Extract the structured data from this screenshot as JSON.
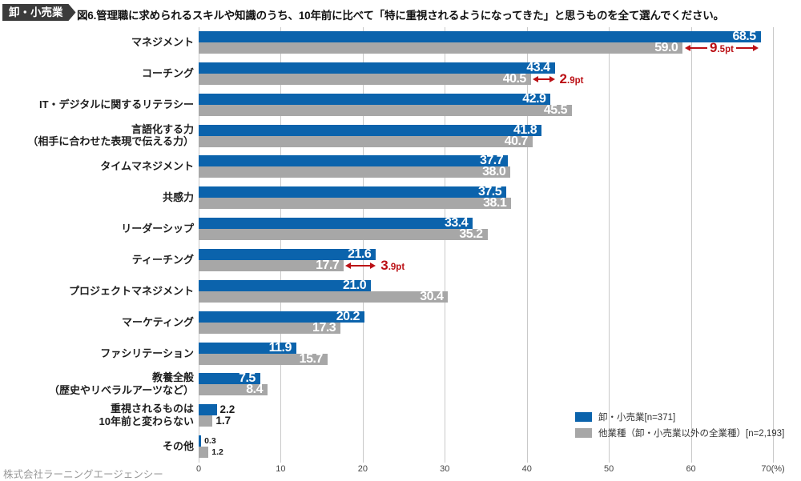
{
  "header": {
    "badge": "卸・小売業",
    "title": "図6.管理職に求められるスキルや知識のうち、10年前に比べて「特に重視されるようになってきた」と思うものを全て選んでください。"
  },
  "footer": {
    "company": "株式会社ラーニングエージェンシー"
  },
  "colors": {
    "primary": "#0b63ac",
    "secondary": "#a7a7a7",
    "annotation": "#bb1015",
    "badge_bg": "#3b3b3b",
    "grid": "#c9c9c9"
  },
  "chart_data": {
    "type": "bar",
    "orientation": "horizontal",
    "title": "図6.管理職に求められるスキルや知識のうち、10年前に比べて「特に重視されるようになってきた」と思うものを全て選んでください。",
    "categories": [
      "マネジメント",
      "コーチング",
      "IT・デジタルに関するリテラシー",
      "言語化する力\n（相手に合わせた表現で伝える力）",
      "タイムマネジメント",
      "共感力",
      "リーダーシップ",
      "ティーチング",
      "プロジェクトマネジメント",
      "マーケティング",
      "ファシリテーション",
      "教養全般\n（歴史やリベラルアーツなど）",
      "重視されるものは\n10年前と変わらない",
      "その他"
    ],
    "series": [
      {
        "name": "卸・小売業[n=371]",
        "values": [
          68.5,
          43.4,
          42.9,
          41.8,
          37.7,
          37.5,
          33.4,
          21.6,
          21.0,
          20.2,
          11.9,
          7.5,
          2.2,
          0.3
        ]
      },
      {
        "name": "他業種（卸・小売業以外の全業種）[n=2,193]",
        "values": [
          59.0,
          40.5,
          45.5,
          40.7,
          38.0,
          38.1,
          35.2,
          17.7,
          30.4,
          17.3,
          15.7,
          8.4,
          1.7,
          1.2
        ]
      }
    ],
    "annotations": [
      {
        "row": 0,
        "diff": "9.5",
        "unit": "pt",
        "style": "between"
      },
      {
        "row": 1,
        "diff": "2.9",
        "unit": "pt",
        "style": "trailing"
      },
      {
        "row": 7,
        "diff": "3.9",
        "unit": "pt",
        "style": "trailing"
      }
    ],
    "xlim": [
      0,
      70
    ],
    "xticks": [
      "0",
      "10",
      "20",
      "30",
      "40",
      "50",
      "60",
      "70(%)"
    ],
    "grid": true,
    "legend_position": "bottom-right"
  }
}
